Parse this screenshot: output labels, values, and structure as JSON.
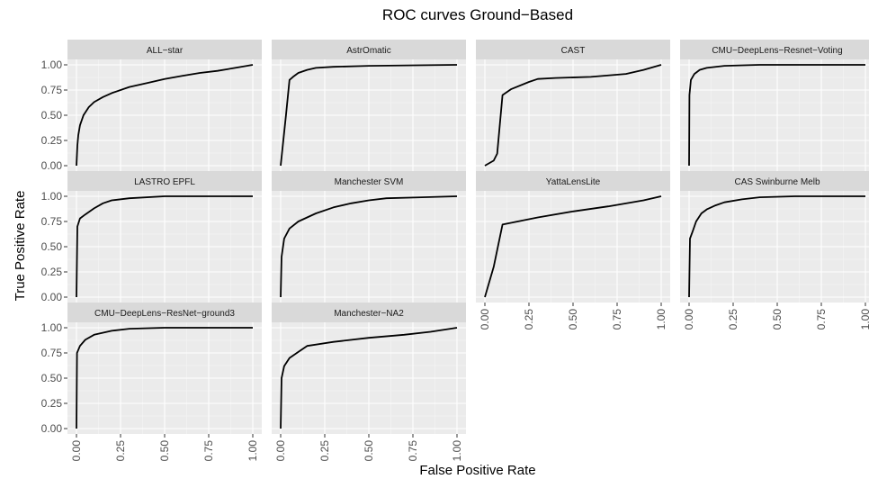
{
  "chart_data": {
    "type": "line",
    "title": "ROC curves Ground−Based",
    "xlabel": "False Positive Rate",
    "ylabel": "True Positive Rate",
    "xlim": [
      0,
      1
    ],
    "ylim": [
      0,
      1
    ],
    "x_ticks": [
      "0.00",
      "0.25",
      "0.50",
      "0.75",
      "1.00"
    ],
    "y_ticks": [
      "0.00",
      "0.25",
      "0.50",
      "0.75",
      "1.00"
    ],
    "grid": true,
    "legend": "none",
    "line_color": "#000000",
    "panel_background": "#ebebeb",
    "strip_background": "#d9d9d9",
    "facets": [
      {
        "name": "ALL−star",
        "points": [
          [
            0,
            0
          ],
          [
            0.005,
            0.2
          ],
          [
            0.01,
            0.3
          ],
          [
            0.02,
            0.4
          ],
          [
            0.04,
            0.5
          ],
          [
            0.07,
            0.58
          ],
          [
            0.1,
            0.63
          ],
          [
            0.15,
            0.68
          ],
          [
            0.2,
            0.72
          ],
          [
            0.3,
            0.78
          ],
          [
            0.4,
            0.82
          ],
          [
            0.5,
            0.86
          ],
          [
            0.6,
            0.89
          ],
          [
            0.7,
            0.92
          ],
          [
            0.8,
            0.94
          ],
          [
            0.9,
            0.97
          ],
          [
            1,
            1
          ]
        ]
      },
      {
        "name": "AstrOmatic",
        "points": [
          [
            0,
            0
          ],
          [
            0.03,
            0.5
          ],
          [
            0.05,
            0.85
          ],
          [
            0.07,
            0.88
          ],
          [
            0.1,
            0.92
          ],
          [
            0.15,
            0.95
          ],
          [
            0.2,
            0.97
          ],
          [
            0.3,
            0.98
          ],
          [
            0.5,
            0.99
          ],
          [
            1,
            1
          ]
        ]
      },
      {
        "name": "CAST",
        "points": [
          [
            0,
            0
          ],
          [
            0.05,
            0.05
          ],
          [
            0.07,
            0.12
          ],
          [
            0.1,
            0.7
          ],
          [
            0.15,
            0.76
          ],
          [
            0.25,
            0.83
          ],
          [
            0.3,
            0.86
          ],
          [
            0.4,
            0.87
          ],
          [
            0.6,
            0.88
          ],
          [
            0.8,
            0.91
          ],
          [
            0.9,
            0.95
          ],
          [
            1,
            1
          ]
        ]
      },
      {
        "name": "CMU−DeepLens−Resnet−Voting",
        "points": [
          [
            0,
            0
          ],
          [
            0.002,
            0.7
          ],
          [
            0.01,
            0.85
          ],
          [
            0.03,
            0.91
          ],
          [
            0.06,
            0.95
          ],
          [
            0.1,
            0.97
          ],
          [
            0.2,
            0.99
          ],
          [
            0.4,
            1
          ],
          [
            1,
            1
          ]
        ]
      },
      {
        "name": "LASTRO EPFL",
        "points": [
          [
            0,
            0
          ],
          [
            0.005,
            0.7
          ],
          [
            0.02,
            0.78
          ],
          [
            0.05,
            0.82
          ],
          [
            0.1,
            0.88
          ],
          [
            0.15,
            0.93
          ],
          [
            0.2,
            0.96
          ],
          [
            0.3,
            0.98
          ],
          [
            0.5,
            1
          ],
          [
            1,
            1
          ]
        ]
      },
      {
        "name": "Manchester SVM",
        "points": [
          [
            0,
            0
          ],
          [
            0.005,
            0.4
          ],
          [
            0.02,
            0.58
          ],
          [
            0.05,
            0.68
          ],
          [
            0.1,
            0.75
          ],
          [
            0.2,
            0.83
          ],
          [
            0.3,
            0.89
          ],
          [
            0.4,
            0.93
          ],
          [
            0.5,
            0.96
          ],
          [
            0.6,
            0.98
          ],
          [
            0.8,
            0.99
          ],
          [
            1,
            1
          ]
        ]
      },
      {
        "name": "YattaLensLite",
        "points": [
          [
            0,
            0
          ],
          [
            0.05,
            0.3
          ],
          [
            0.1,
            0.72
          ],
          [
            0.3,
            0.79
          ],
          [
            0.5,
            0.85
          ],
          [
            0.7,
            0.9
          ],
          [
            0.9,
            0.96
          ],
          [
            1,
            1
          ]
        ]
      },
      {
        "name": "CAS Swinburne Melb",
        "points": [
          [
            0,
            0
          ],
          [
            0.005,
            0.58
          ],
          [
            0.02,
            0.65
          ],
          [
            0.04,
            0.75
          ],
          [
            0.07,
            0.83
          ],
          [
            0.1,
            0.87
          ],
          [
            0.15,
            0.91
          ],
          [
            0.2,
            0.94
          ],
          [
            0.3,
            0.97
          ],
          [
            0.4,
            0.99
          ],
          [
            0.6,
            1
          ],
          [
            1,
            1
          ]
        ]
      },
      {
        "name": "CMU−DeepLens−ResNet−ground3",
        "points": [
          [
            0,
            0
          ],
          [
            0.003,
            0.75
          ],
          [
            0.02,
            0.82
          ],
          [
            0.05,
            0.88
          ],
          [
            0.1,
            0.93
          ],
          [
            0.2,
            0.97
          ],
          [
            0.3,
            0.99
          ],
          [
            0.5,
            1
          ],
          [
            1,
            1
          ]
        ]
      },
      {
        "name": "Manchester−NA2",
        "points": [
          [
            0,
            0
          ],
          [
            0.005,
            0.5
          ],
          [
            0.02,
            0.62
          ],
          [
            0.05,
            0.7
          ],
          [
            0.1,
            0.76
          ],
          [
            0.15,
            0.82
          ],
          [
            0.3,
            0.86
          ],
          [
            0.5,
            0.9
          ],
          [
            0.7,
            0.93
          ],
          [
            0.85,
            0.96
          ],
          [
            1,
            1
          ]
        ]
      }
    ]
  }
}
